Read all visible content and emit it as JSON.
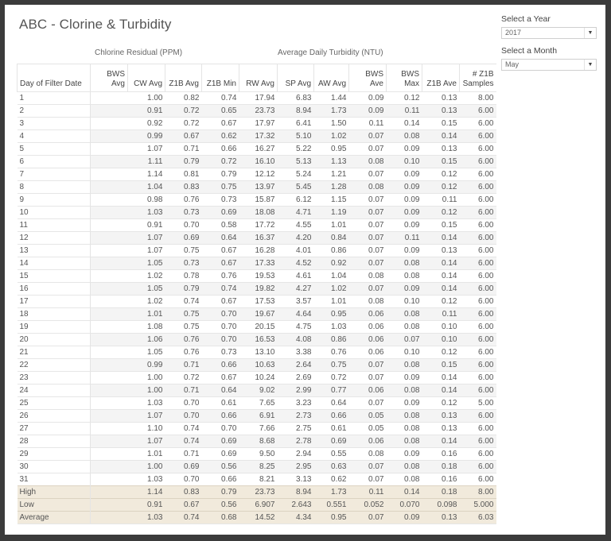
{
  "title": "ABC - Clorine & Turbidity",
  "group_labels": {
    "chlorine": "Chlorine Residual (PPM)",
    "turbidity": "Average Daily Turbidity (NTU)"
  },
  "filters": {
    "year": {
      "label": "Select a Year",
      "value": "2017"
    },
    "month": {
      "label": "Select a Month",
      "value": "May"
    }
  },
  "table": {
    "columns": [
      "Day of Filter Date",
      "BWS Avg",
      "CW Avg",
      "Z1B Avg",
      "Z1B Min",
      "RW Avg",
      "SP Avg",
      "AW Avg",
      "BWS Ave",
      "BWS Max",
      "Z1B Ave",
      "# Z1B Samples"
    ],
    "rows": [
      [
        "1",
        "",
        "1.00",
        "0.82",
        "0.74",
        "17.94",
        "6.83",
        "1.44",
        "0.09",
        "0.12",
        "0.13",
        "8.00"
      ],
      [
        "2",
        "",
        "0.91",
        "0.72",
        "0.65",
        "23.73",
        "8.94",
        "1.73",
        "0.09",
        "0.11",
        "0.13",
        "6.00"
      ],
      [
        "3",
        "",
        "0.92",
        "0.72",
        "0.67",
        "17.97",
        "6.41",
        "1.50",
        "0.11",
        "0.14",
        "0.15",
        "6.00"
      ],
      [
        "4",
        "",
        "0.99",
        "0.67",
        "0.62",
        "17.32",
        "5.10",
        "1.02",
        "0.07",
        "0.08",
        "0.14",
        "6.00"
      ],
      [
        "5",
        "",
        "1.07",
        "0.71",
        "0.66",
        "16.27",
        "5.22",
        "0.95",
        "0.07",
        "0.09",
        "0.13",
        "6.00"
      ],
      [
        "6",
        "",
        "1.11",
        "0.79",
        "0.72",
        "16.10",
        "5.13",
        "1.13",
        "0.08",
        "0.10",
        "0.15",
        "6.00"
      ],
      [
        "7",
        "",
        "1.14",
        "0.81",
        "0.79",
        "12.12",
        "5.24",
        "1.21",
        "0.07",
        "0.09",
        "0.12",
        "6.00"
      ],
      [
        "8",
        "",
        "1.04",
        "0.83",
        "0.75",
        "13.97",
        "5.45",
        "1.28",
        "0.08",
        "0.09",
        "0.12",
        "6.00"
      ],
      [
        "9",
        "",
        "0.98",
        "0.76",
        "0.73",
        "15.87",
        "6.12",
        "1.15",
        "0.07",
        "0.09",
        "0.11",
        "6.00"
      ],
      [
        "10",
        "",
        "1.03",
        "0.73",
        "0.69",
        "18.08",
        "4.71",
        "1.19",
        "0.07",
        "0.09",
        "0.12",
        "6.00"
      ],
      [
        "11",
        "",
        "0.91",
        "0.70",
        "0.58",
        "17.72",
        "4.55",
        "1.01",
        "0.07",
        "0.09",
        "0.15",
        "6.00"
      ],
      [
        "12",
        "",
        "1.07",
        "0.69",
        "0.64",
        "16.37",
        "4.20",
        "0.84",
        "0.07",
        "0.11",
        "0.14",
        "6.00"
      ],
      [
        "13",
        "",
        "1.07",
        "0.75",
        "0.67",
        "16.28",
        "4.01",
        "0.86",
        "0.07",
        "0.09",
        "0.13",
        "6.00"
      ],
      [
        "14",
        "",
        "1.05",
        "0.73",
        "0.67",
        "17.33",
        "4.52",
        "0.92",
        "0.07",
        "0.08",
        "0.14",
        "6.00"
      ],
      [
        "15",
        "",
        "1.02",
        "0.78",
        "0.76",
        "19.53",
        "4.61",
        "1.04",
        "0.08",
        "0.08",
        "0.14",
        "6.00"
      ],
      [
        "16",
        "",
        "1.05",
        "0.79",
        "0.74",
        "19.82",
        "4.27",
        "1.02",
        "0.07",
        "0.09",
        "0.14",
        "6.00"
      ],
      [
        "17",
        "",
        "1.02",
        "0.74",
        "0.67",
        "17.53",
        "3.57",
        "1.01",
        "0.08",
        "0.10",
        "0.12",
        "6.00"
      ],
      [
        "18",
        "",
        "1.01",
        "0.75",
        "0.70",
        "19.67",
        "4.64",
        "0.95",
        "0.06",
        "0.08",
        "0.11",
        "6.00"
      ],
      [
        "19",
        "",
        "1.08",
        "0.75",
        "0.70",
        "20.15",
        "4.75",
        "1.03",
        "0.06",
        "0.08",
        "0.10",
        "6.00"
      ],
      [
        "20",
        "",
        "1.06",
        "0.76",
        "0.70",
        "16.53",
        "4.08",
        "0.86",
        "0.06",
        "0.07",
        "0.10",
        "6.00"
      ],
      [
        "21",
        "",
        "1.05",
        "0.76",
        "0.73",
        "13.10",
        "3.38",
        "0.76",
        "0.06",
        "0.10",
        "0.12",
        "6.00"
      ],
      [
        "22",
        "",
        "0.99",
        "0.71",
        "0.66",
        "10.63",
        "2.64",
        "0.75",
        "0.07",
        "0.08",
        "0.15",
        "6.00"
      ],
      [
        "23",
        "",
        "1.00",
        "0.72",
        "0.67",
        "10.24",
        "2.69",
        "0.72",
        "0.07",
        "0.09",
        "0.14",
        "6.00"
      ],
      [
        "24",
        "",
        "1.00",
        "0.71",
        "0.64",
        "9.02",
        "2.99",
        "0.77",
        "0.06",
        "0.08",
        "0.14",
        "6.00"
      ],
      [
        "25",
        "",
        "1.03",
        "0.70",
        "0.61",
        "7.65",
        "3.23",
        "0.64",
        "0.07",
        "0.09",
        "0.12",
        "5.00"
      ],
      [
        "26",
        "",
        "1.07",
        "0.70",
        "0.66",
        "6.91",
        "2.73",
        "0.66",
        "0.05",
        "0.08",
        "0.13",
        "6.00"
      ],
      [
        "27",
        "",
        "1.10",
        "0.74",
        "0.70",
        "7.66",
        "2.75",
        "0.61",
        "0.05",
        "0.08",
        "0.13",
        "6.00"
      ],
      [
        "28",
        "",
        "1.07",
        "0.74",
        "0.69",
        "8.68",
        "2.78",
        "0.69",
        "0.06",
        "0.08",
        "0.14",
        "6.00"
      ],
      [
        "29",
        "",
        "1.01",
        "0.71",
        "0.69",
        "9.50",
        "2.94",
        "0.55",
        "0.08",
        "0.09",
        "0.16",
        "6.00"
      ],
      [
        "30",
        "",
        "1.00",
        "0.69",
        "0.56",
        "8.25",
        "2.95",
        "0.63",
        "0.07",
        "0.08",
        "0.18",
        "6.00"
      ],
      [
        "31",
        "",
        "1.03",
        "0.70",
        "0.66",
        "8.21",
        "3.13",
        "0.62",
        "0.07",
        "0.08",
        "0.16",
        "6.00"
      ]
    ],
    "summary": [
      [
        "High",
        "",
        "1.14",
        "0.83",
        "0.79",
        "23.73",
        "8.94",
        "1.73",
        "0.11",
        "0.14",
        "0.18",
        "8.00"
      ],
      [
        "Low",
        "",
        "0.91",
        "0.67",
        "0.56",
        "6.907",
        "2.643",
        "0.551",
        "0.052",
        "0.070",
        "0.098",
        "5.000"
      ],
      [
        "Average",
        "",
        "1.03",
        "0.74",
        "0.68",
        "14.52",
        "4.34",
        "0.95",
        "0.07",
        "0.09",
        "0.13",
        "6.03"
      ]
    ]
  },
  "colors": {
    "frame": "#3b3b3b",
    "summary_row": "#f1eadc",
    "alt_row": "#f4f4f4"
  }
}
